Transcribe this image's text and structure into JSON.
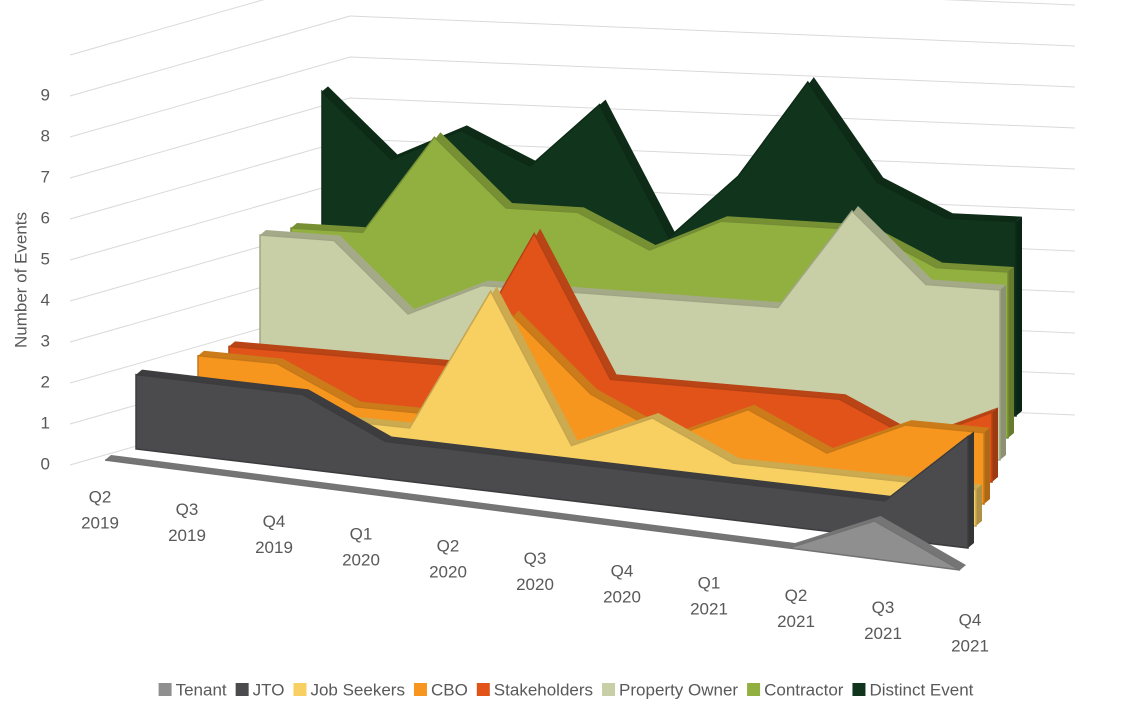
{
  "chart_data": {
    "type": "area3d",
    "y_label": "Number of Events",
    "categories": [
      [
        "Q2",
        "2019"
      ],
      [
        "Q3",
        "2019"
      ],
      [
        "Q4",
        "2019"
      ],
      [
        "Q1",
        "2020"
      ],
      [
        "Q2",
        "2020"
      ],
      [
        "Q3",
        "2020"
      ],
      [
        "Q4",
        "2020"
      ],
      [
        "Q1",
        "2021"
      ],
      [
        "Q2",
        "2021"
      ],
      [
        "Q3",
        "2021"
      ],
      [
        "Q4",
        "2021"
      ]
    ],
    "series": [
      {
        "name": "Tenant",
        "color": "#8f8f8f",
        "values": [
          0,
          0,
          0,
          0,
          0,
          0,
          0,
          0,
          0,
          1,
          0
        ]
      },
      {
        "name": "JTO",
        "color": "#4b4b4d",
        "values": [
          2,
          2,
          2,
          1,
          1,
          1,
          1,
          1,
          1,
          1,
          3
        ]
      },
      {
        "name": "Job Seekers",
        "color": "#f8cf61",
        "values": [
          1,
          1,
          1,
          1,
          5,
          1,
          2,
          1,
          1,
          1,
          1
        ]
      },
      {
        "name": "CBO",
        "color": "#f7961e",
        "values": [
          2,
          2,
          1,
          1,
          4,
          2,
          1,
          2,
          1,
          2,
          2
        ]
      },
      {
        "name": "Stakeholders",
        "color": "#e2531a",
        "values": [
          2,
          2,
          2,
          2,
          6,
          2,
          2,
          2,
          2,
          1,
          2
        ]
      },
      {
        "name": "Property Owner",
        "color": "#c8cfa6",
        "values": [
          5,
          5,
          3,
          4,
          4,
          4,
          4,
          4,
          7,
          5,
          5
        ]
      },
      {
        "name": "Contractor",
        "color": "#92b040",
        "values": [
          5,
          5,
          8,
          6,
          6,
          5,
          6,
          6,
          6,
          5,
          5
        ]
      },
      {
        "name": "Distinct Event",
        "color": "#10351c",
        "values": [
          9,
          7,
          8,
          7,
          9,
          5,
          7,
          10,
          7,
          6,
          6
        ]
      }
    ],
    "ylim": [
      0,
      10
    ],
    "yticks": [
      0,
      1,
      2,
      3,
      4,
      5,
      6,
      7,
      8,
      9
    ],
    "grid": true,
    "legend": "bottom"
  }
}
